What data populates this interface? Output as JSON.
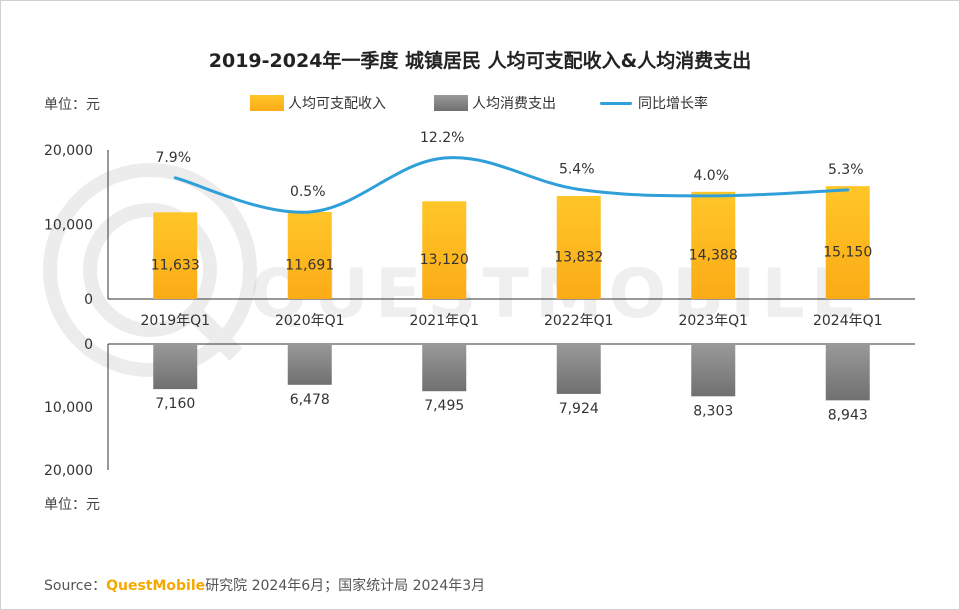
{
  "title": "2019-2024年一季度 城镇居民 人均可支配收入&人均消费支出",
  "unit_top": "单位：元",
  "unit_bottom": "单位：元",
  "watermark": "QUESTMOBILE",
  "legend": {
    "income": "人均可支配收入",
    "spending": "人均消费支出",
    "growth": "同比增长率"
  },
  "colors": {
    "income_top": "#ffc629",
    "income_bottom": "#fbab17",
    "spending_top": "#999999",
    "spending_bottom": "#707070",
    "growth": "#2e9fd9",
    "brand": "#f5a800"
  },
  "source": {
    "prefix": "Source：",
    "brand": "QuestMobile",
    "rest": "研究院 2024年6月；国家统计局 2024年3月"
  },
  "chart_data": {
    "type": "bar",
    "categories": [
      "2019年Q1",
      "2020年Q1",
      "2021年Q1",
      "2022年Q1",
      "2023年Q1",
      "2024年Q1"
    ],
    "series": [
      {
        "name": "人均可支配收入",
        "values": [
          11633,
          11691,
          13120,
          13832,
          14388,
          15150
        ],
        "labels": [
          "11,633",
          "11,691",
          "13,120",
          "13,832",
          "14,388",
          "15,150"
        ]
      },
      {
        "name": "人均消费支出",
        "values": [
          7160,
          6478,
          7495,
          7924,
          8303,
          8943
        ],
        "labels": [
          "7,160",
          "6,478",
          "7,495",
          "7,924",
          "8,303",
          "8,943"
        ]
      },
      {
        "name": "同比增长率",
        "type": "line",
        "values": [
          7.9,
          0.5,
          12.2,
          5.4,
          4.0,
          5.3
        ],
        "labels": [
          "7.9%",
          "0.5%",
          "12.2%",
          "5.4%",
          "4.0%",
          "5.3%"
        ]
      }
    ],
    "top_axis": {
      "ylim": [
        0,
        20000
      ],
      "ticks": [
        "0",
        "10,000",
        "20,000"
      ]
    },
    "bottom_axis": {
      "ylim": [
        0,
        20000
      ],
      "ticks": [
        "0",
        "10,000",
        "20,000"
      ]
    },
    "xlabel": "",
    "ylabel": "单位：元"
  }
}
